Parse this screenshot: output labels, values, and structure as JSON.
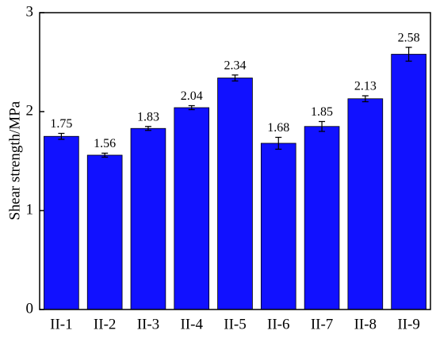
{
  "chart_data": {
    "type": "bar",
    "y_label": "Shear strength/MPa",
    "categories": [
      "II-1",
      "II-2",
      "II-3",
      "II-4",
      "II-5",
      "II-6",
      "II-7",
      "II-8",
      "II-9"
    ],
    "values": [
      1.75,
      1.56,
      1.83,
      2.04,
      2.34,
      1.68,
      1.85,
      2.13,
      2.58
    ],
    "errors": [
      0.03,
      0.02,
      0.02,
      0.02,
      0.03,
      0.06,
      0.05,
      0.03,
      0.07
    ],
    "color": "#1111ff",
    "ylim": [
      0,
      3
    ],
    "yticks": [
      0,
      1,
      2,
      3
    ]
  }
}
